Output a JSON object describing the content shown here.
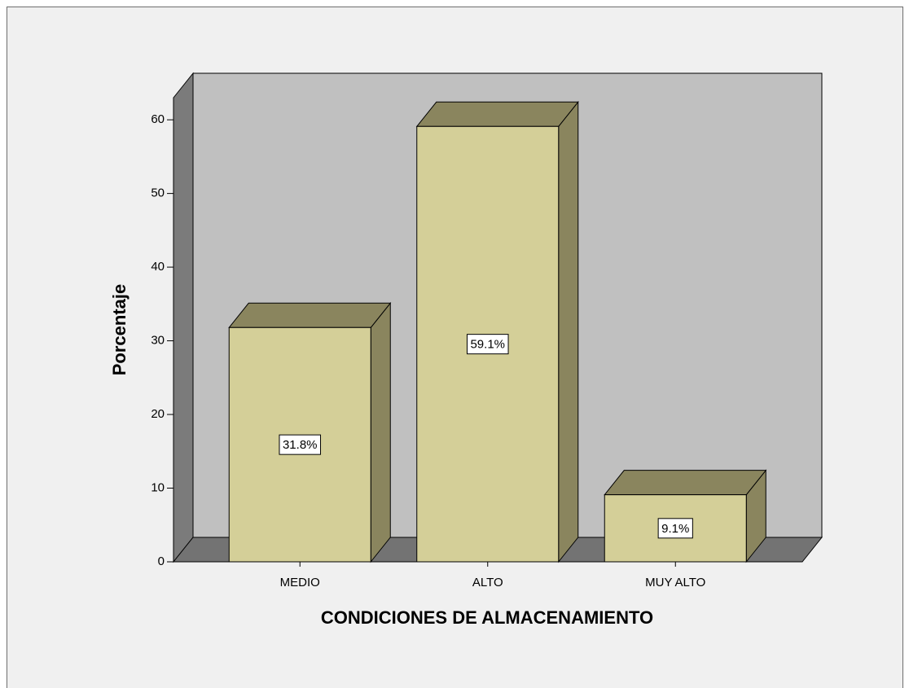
{
  "chart_data": {
    "type": "bar3d",
    "y_axis_label": "Porcentaje",
    "x_axis_label": "CONDICIONES DE ALMACENAMIENTO",
    "categories": [
      "MEDIO",
      "ALTO",
      "MUY ALTO"
    ],
    "values": [
      31.8,
      59.1,
      9.1
    ],
    "value_labels": [
      "31.8%",
      "59.1%",
      "9.1%"
    ],
    "color": "#d4cf98",
    "ylim": [
      0,
      63
    ],
    "yticks": [
      0,
      10,
      20,
      30,
      40,
      50,
      60
    ]
  }
}
